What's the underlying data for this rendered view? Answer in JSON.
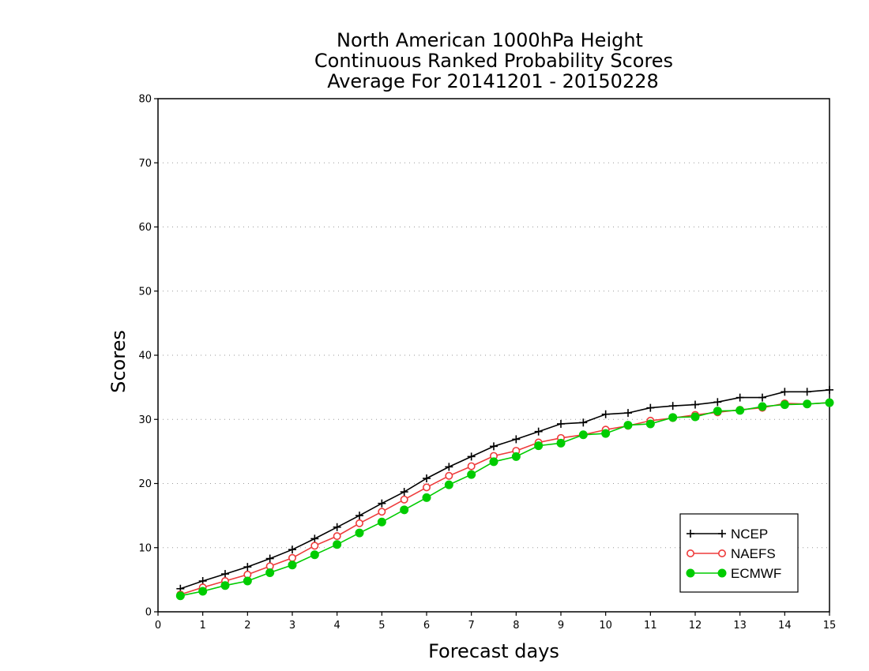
{
  "chart_data": {
    "type": "line",
    "title": [
      "North American 1000hPa Height",
      "Continuous Ranked Probability Scores",
      "Average For 20141201 - 20150228"
    ],
    "xlabel": "Forecast days",
    "ylabel": "Scores",
    "xlim": [
      0,
      15
    ],
    "ylim": [
      0,
      80
    ],
    "xticks": [
      0,
      1,
      2,
      3,
      4,
      5,
      6,
      7,
      8,
      9,
      10,
      11,
      12,
      13,
      14,
      15
    ],
    "yticks": [
      0,
      10,
      20,
      30,
      40,
      50,
      60,
      70,
      80
    ],
    "grid": "horizontal dotted",
    "legend_position": "bottom-right",
    "x": [
      0.5,
      1,
      1.5,
      2,
      2.5,
      3,
      3.5,
      4,
      4.5,
      5,
      5.5,
      6,
      6.5,
      7,
      7.5,
      8,
      8.5,
      9,
      9.5,
      10,
      10.5,
      11,
      11.5,
      12,
      12.5,
      13,
      13.5,
      14,
      14.5,
      15
    ],
    "series": [
      {
        "name": "NCEP",
        "color": "#000000",
        "marker": "plus",
        "values": [
          3.6,
          4.8,
          5.9,
          7.0,
          8.3,
          9.7,
          11.4,
          13.2,
          15.0,
          16.9,
          18.7,
          20.8,
          22.6,
          24.2,
          25.8,
          26.9,
          28.1,
          29.3,
          29.5,
          30.8,
          31.0,
          31.8,
          32.1,
          32.3,
          32.7,
          33.4,
          33.4,
          34.3,
          34.3,
          34.6
        ]
      },
      {
        "name": "NAEFS",
        "color": "#ee3b3b",
        "marker": "open-circle",
        "values": [
          2.7,
          3.8,
          4.8,
          5.8,
          7.1,
          8.4,
          10.3,
          11.8,
          13.8,
          15.6,
          17.5,
          19.4,
          21.2,
          22.7,
          24.3,
          25.1,
          26.4,
          27.1,
          27.6,
          28.4,
          29.0,
          29.8,
          30.2,
          30.7,
          31.1,
          31.5,
          31.8,
          32.5,
          32.4,
          32.6
        ]
      },
      {
        "name": "ECMWF",
        "color": "#00cc00",
        "marker": "filled-circle",
        "values": [
          2.5,
          3.2,
          4.1,
          4.8,
          6.1,
          7.3,
          8.9,
          10.5,
          12.3,
          14.0,
          15.9,
          17.8,
          19.8,
          21.4,
          23.4,
          24.2,
          25.9,
          26.3,
          27.6,
          27.8,
          29.1,
          29.3,
          30.3,
          30.4,
          31.3,
          31.4,
          32.0,
          32.3,
          32.4,
          32.6
        ]
      }
    ]
  }
}
